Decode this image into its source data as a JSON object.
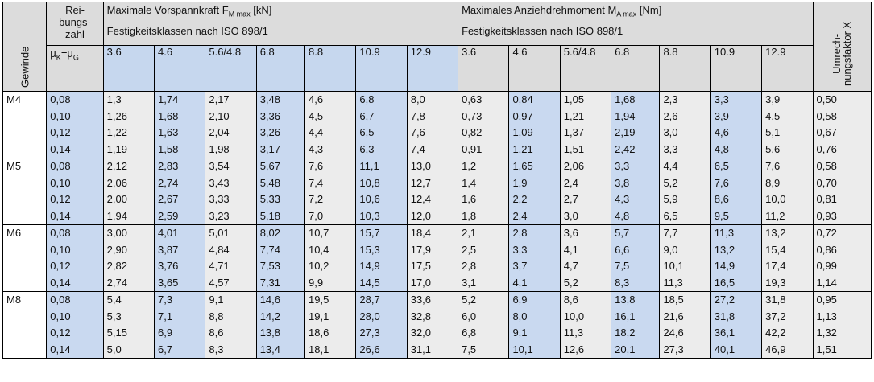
{
  "header": {
    "gewinde": "Gewinde",
    "reibungszahl": "Rei-\nbungs-\nzahl",
    "mu_label": "μK=μG",
    "vorspannkraft_title": "Maximale Vorspannkraft F",
    "vorspannkraft_sub": "M max",
    "vorspannkraft_unit": " [kN]",
    "anziehdrehmoment_title": "Maximales Anziehdrehmoment M",
    "anziehdrehmoment_sub": "A max",
    "anziehdrehmoment_unit": " [Nm]",
    "festigkeit_left": "Festigkeitsklassen nach ISO 898/1",
    "festigkeit_right": "Festigkeitsklassen nach ISO 898/1",
    "umrechnungsfaktor": "Umrech-\nnungsfaktor X",
    "classes": [
      "3.6",
      "4.6",
      "5.6/4.8",
      "6.8",
      "8.8",
      "10.9",
      "12.9"
    ]
  },
  "groups": [
    {
      "thread": "M4",
      "mu": [
        "0,08",
        "0,10",
        "0,12",
        "0,14"
      ],
      "force": [
        [
          "1,3",
          "1,26",
          "1,22",
          "1,19"
        ],
        [
          "1,74",
          "1,68",
          "1,63",
          "1,58"
        ],
        [
          "2,17",
          "2,10",
          "2,04",
          "1,98"
        ],
        [
          "3,48",
          "3,36",
          "3,26",
          "3,17"
        ],
        [
          "4,6",
          "4,5",
          "4,4",
          "4,3"
        ],
        [
          "6,8",
          "6,7",
          "6,5",
          "6,3"
        ],
        [
          "8,0",
          "7,8",
          "7,6",
          "7,4"
        ]
      ],
      "torque": [
        [
          "0,63",
          "0,73",
          "0,82",
          "0,91"
        ],
        [
          "0,84",
          "0,97",
          "1,09",
          "1,21"
        ],
        [
          "1,05",
          "1,21",
          "1,37",
          "1,51"
        ],
        [
          "1,68",
          "1,94",
          "2,19",
          "2,42"
        ],
        [
          "2,3",
          "2,6",
          "3,0",
          "3,3"
        ],
        [
          "3,3",
          "3,9",
          "4,6",
          "4,8"
        ],
        [
          "3,9",
          "4,5",
          "5,1",
          "5,6"
        ]
      ],
      "x": [
        "0,50",
        "0,58",
        "0,67",
        "0,76"
      ]
    },
    {
      "thread": "M5",
      "mu": [
        "0,08",
        "0,10",
        "0,12",
        "0,14"
      ],
      "force": [
        [
          "2,12",
          "2,06",
          "2,00",
          "1,94"
        ],
        [
          "2,83",
          "2,74",
          "2,67",
          "2,59"
        ],
        [
          "3,54",
          "3,43",
          "3,33",
          "3,23"
        ],
        [
          "5,67",
          "5,48",
          "5,33",
          "5,18"
        ],
        [
          "7,6",
          "7,4",
          "7,2",
          "7,0"
        ],
        [
          "11,1",
          "10,8",
          "10,6",
          "10,3"
        ],
        [
          "13,0",
          "12,7",
          "12,4",
          "12,0"
        ]
      ],
      "torque": [
        [
          "1,2",
          "1,4",
          "1,6",
          "1,8"
        ],
        [
          "1,65",
          "1,9",
          "2,2",
          "2,4"
        ],
        [
          "2,06",
          "2,4",
          "2,7",
          "3,0"
        ],
        [
          "3,3",
          "3,8",
          "4,3",
          "4,8"
        ],
        [
          "4,4",
          "5,2",
          "5,9",
          "6,5"
        ],
        [
          "6,5",
          "7,6",
          "8,6",
          "9,5"
        ],
        [
          "7,6",
          "8,9",
          "10,0",
          "11,2"
        ]
      ],
      "x": [
        "0,58",
        "0,70",
        "0,81",
        "0,93"
      ]
    },
    {
      "thread": "M6",
      "mu": [
        "0,08",
        "0,10",
        "0,12",
        "0,14"
      ],
      "force": [
        [
          "3,00",
          "2,90",
          "2,82",
          "2,74"
        ],
        [
          "4,01",
          "3,87",
          "3,76",
          "3,65"
        ],
        [
          "5,01",
          "4,84",
          "4,71",
          "4,57"
        ],
        [
          "8,02",
          "7,74",
          "7,53",
          "7,31"
        ],
        [
          "10,7",
          "10,4",
          "10,2",
          "9,9"
        ],
        [
          "15,7",
          "15,3",
          "14,9",
          "14,5"
        ],
        [
          "18,4",
          "17,9",
          "17,5",
          "17,0"
        ]
      ],
      "torque": [
        [
          "2,1",
          "2,5",
          "2,8",
          "3,1"
        ],
        [
          "2,8",
          "3,3",
          "3,7",
          "4,1"
        ],
        [
          "3,6",
          "4,1",
          "4,7",
          "5,2"
        ],
        [
          "5,7",
          "6,6",
          "7,5",
          "8,3"
        ],
        [
          "7,7",
          "9,0",
          "10,1",
          "11,3"
        ],
        [
          "11,3",
          "13,2",
          "14,9",
          "16,5"
        ],
        [
          "13,2",
          "15,4",
          "17,4",
          "19,3"
        ]
      ],
      "x": [
        "0,72",
        "0,86",
        "0,99",
        "1,14"
      ]
    },
    {
      "thread": "M8",
      "mu": [
        "0,08",
        "0,10",
        "0,12",
        "0,14"
      ],
      "force": [
        [
          "5,4",
          "5,3",
          "5,15",
          "5,0"
        ],
        [
          "7,3",
          "7,1",
          "6,9",
          "6,7"
        ],
        [
          "9,1",
          "8,8",
          "8,6",
          "8,3"
        ],
        [
          "14,6",
          "14,2",
          "13,8",
          "13,4"
        ],
        [
          "19,5",
          "19,1",
          "18,6",
          "18,1"
        ],
        [
          "28,7",
          "28,0",
          "27,3",
          "26,6"
        ],
        [
          "33,6",
          "32,8",
          "32,0",
          "31,1"
        ]
      ],
      "torque": [
        [
          "5,2",
          "6,0",
          "6,8",
          "7,5"
        ],
        [
          "6,9",
          "8,0",
          "9,1",
          "10,1"
        ],
        [
          "8,6",
          "10,0",
          "11,3",
          "12,6"
        ],
        [
          "13,8",
          "16,1",
          "18,2",
          "20,1"
        ],
        [
          "18,5",
          "21,6",
          "24,6",
          "27,3"
        ],
        [
          "27,2",
          "31,8",
          "36,1",
          "40,1"
        ],
        [
          "31,8",
          "37,2",
          "42,2",
          "46,9"
        ]
      ],
      "x": [
        "0,95",
        "1,13",
        "1,32",
        "1,51"
      ]
    }
  ]
}
